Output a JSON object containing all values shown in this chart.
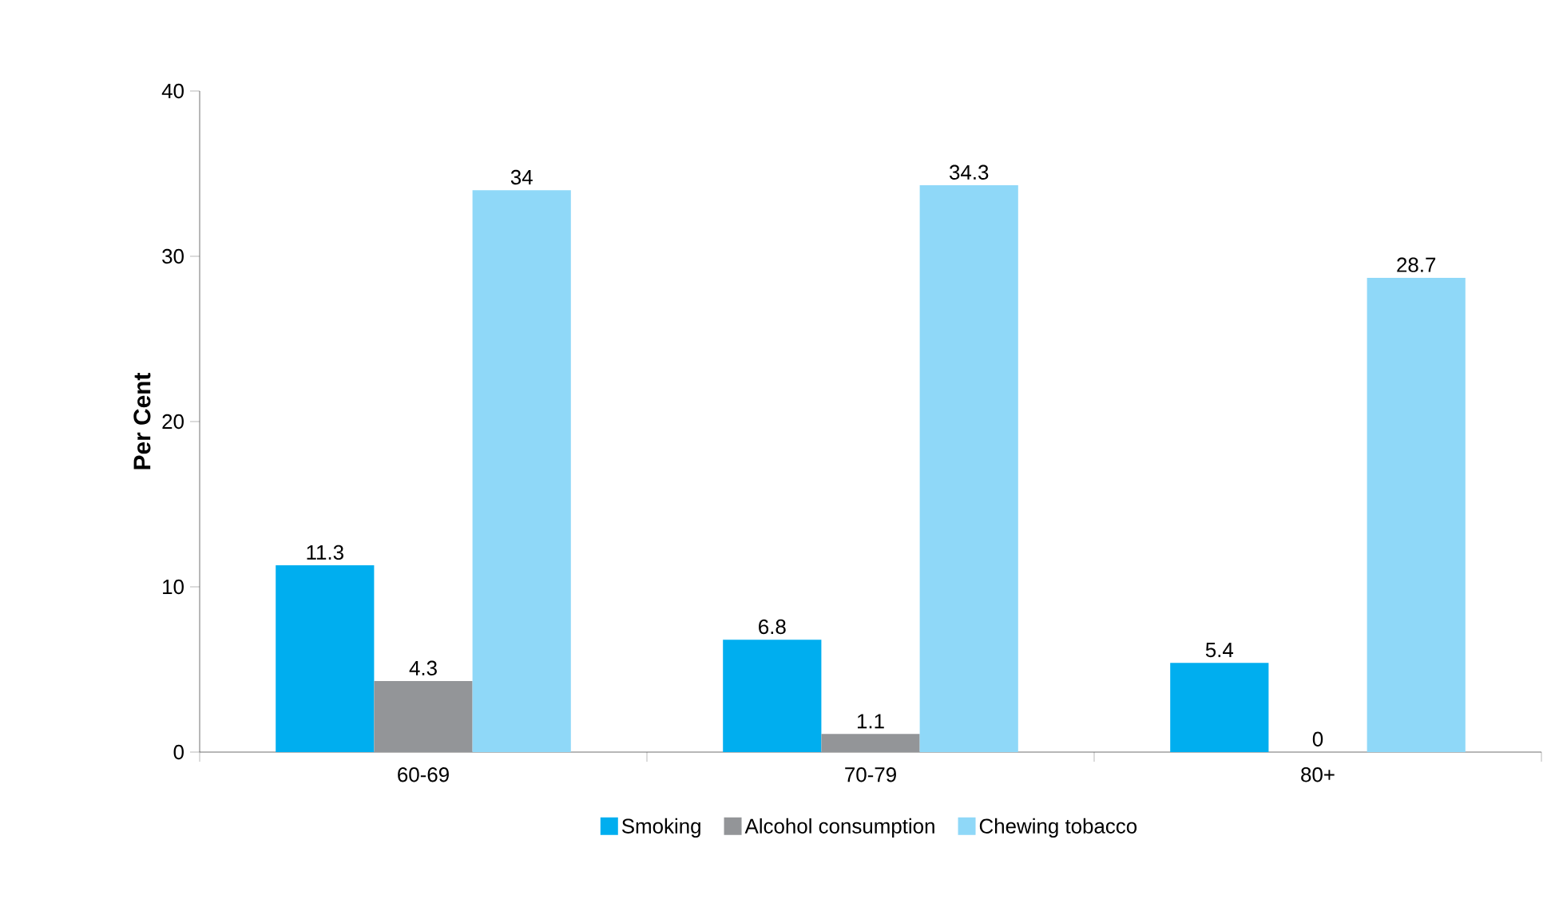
{
  "chart_data": {
    "type": "bar",
    "ylabel": "Per Cent",
    "categories": [
      "60-69",
      "70-79",
      "80+"
    ],
    "series": [
      {
        "name": "Smoking",
        "color": "#00aeef",
        "values": [
          11.3,
          6.8,
          5.4
        ]
      },
      {
        "name": "Alcohol consumption",
        "color": "#939598",
        "values": [
          4.3,
          1.1,
          0
        ]
      },
      {
        "name": "Chewing tobacco",
        "color": "#8fd8f8",
        "values": [
          34,
          34.3,
          28.7
        ]
      }
    ],
    "ylim": [
      0,
      40
    ],
    "yticks": [
      0,
      10,
      20,
      30,
      40
    ],
    "data_labels": true,
    "legend": "bottom"
  }
}
